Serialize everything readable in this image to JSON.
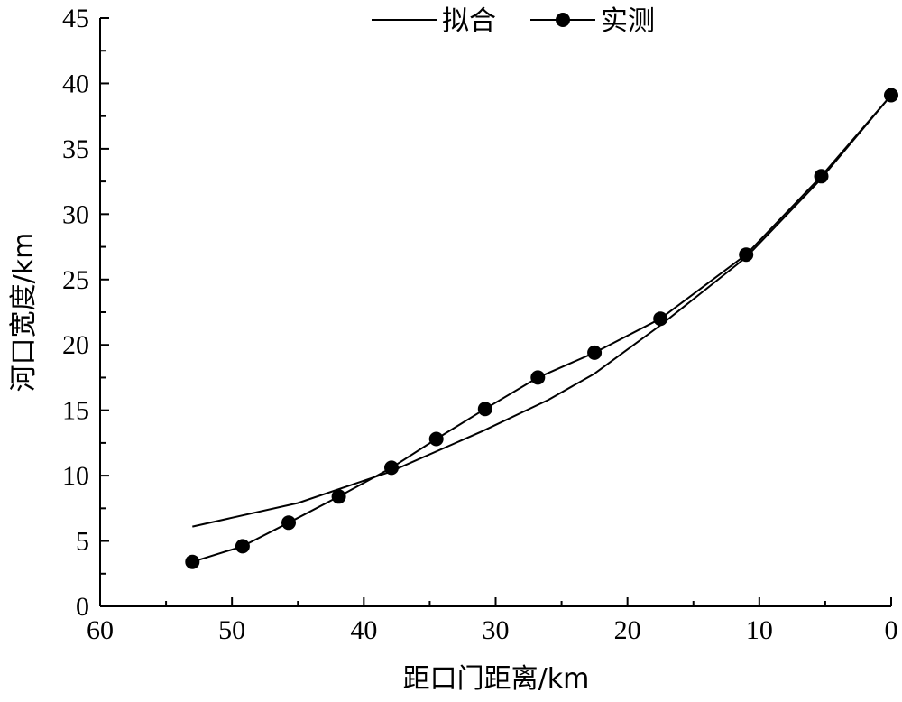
{
  "chart_data": {
    "type": "line",
    "xlabel": "距口门距离/km",
    "ylabel": "河口宽度/km",
    "xlim": [
      60,
      0
    ],
    "ylim": [
      0,
      45
    ],
    "x_ticks": [
      "60",
      "50",
      "40",
      "30",
      "20",
      "10",
      "0"
    ],
    "y_ticks": [
      "0",
      "5",
      "10",
      "15",
      "20",
      "25",
      "30",
      "35",
      "40",
      "45"
    ],
    "legend_position": "top",
    "grid": false,
    "series": [
      {
        "name": "拟合",
        "style": "line",
        "x": [
          53,
          45,
          38,
          31,
          26,
          22.5,
          17.5,
          11,
          5.5,
          0
        ],
        "y": [
          6.1,
          7.9,
          10.3,
          13.4,
          15.8,
          17.8,
          21.5,
          26.7,
          32.5,
          39.1
        ]
      },
      {
        "name": "实测",
        "style": "line-marker",
        "x": [
          53,
          49.2,
          45.7,
          41.9,
          37.9,
          34.5,
          30.8,
          26.8,
          22.5,
          17.5,
          11,
          5.3,
          0
        ],
        "y": [
          3.4,
          4.6,
          6.4,
          8.4,
          10.6,
          12.8,
          15.1,
          17.5,
          19.4,
          22.0,
          26.9,
          32.9,
          39.1
        ]
      }
    ]
  }
}
